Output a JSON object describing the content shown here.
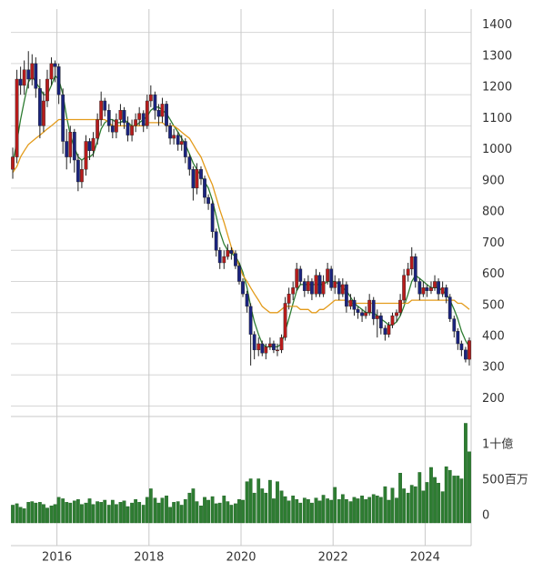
{
  "chart_data": {
    "type": "candlestick",
    "x": [
      2015.04,
      2015.13,
      2015.21,
      2015.29,
      2015.38,
      2015.46,
      2015.54,
      2015.63,
      2015.71,
      2015.79,
      2015.88,
      2015.96,
      2016.04,
      2016.13,
      2016.21,
      2016.29,
      2016.38,
      2016.46,
      2016.54,
      2016.63,
      2016.71,
      2016.79,
      2016.88,
      2016.96,
      2017.04,
      2017.13,
      2017.21,
      2017.29,
      2017.38,
      2017.46,
      2017.54,
      2017.63,
      2017.71,
      2017.79,
      2017.88,
      2017.96,
      2018.04,
      2018.13,
      2018.21,
      2018.29,
      2018.38,
      2018.46,
      2018.54,
      2018.63,
      2018.71,
      2018.79,
      2018.88,
      2018.96,
      2019.04,
      2019.13,
      2019.21,
      2019.29,
      2019.38,
      2019.46,
      2019.54,
      2019.63,
      2019.71,
      2019.79,
      2019.88,
      2019.96,
      2020.04,
      2020.13,
      2020.21,
      2020.29,
      2020.38,
      2020.46,
      2020.54,
      2020.63,
      2020.71,
      2020.79,
      2020.88,
      2020.96,
      2021.04,
      2021.13,
      2021.21,
      2021.29,
      2021.38,
      2021.46,
      2021.54,
      2021.63,
      2021.71,
      2021.79,
      2021.88,
      2021.96,
      2022.04,
      2022.13,
      2022.21,
      2022.29,
      2022.38,
      2022.46,
      2022.54,
      2022.63,
      2022.71,
      2022.79,
      2022.88,
      2022.96,
      2023.04,
      2023.13,
      2023.21,
      2023.29,
      2023.38,
      2023.46,
      2023.54,
      2023.63,
      2023.71,
      2023.79,
      2023.88,
      2023.96,
      2024.04,
      2024.13,
      2024.21,
      2024.29,
      2024.38,
      2024.46,
      2024.54,
      2024.63,
      2024.71,
      2024.79,
      2024.88,
      2024.96
    ],
    "xlim": [
      2015,
      2025
    ],
    "xticks": [
      2016,
      2018,
      2020,
      2022,
      2024
    ],
    "ylim": [
      175,
      1475
    ],
    "yticks": [
      200,
      300,
      400,
      500,
      600,
      700,
      800,
      900,
      1000,
      1100,
      1200,
      1300,
      1400
    ],
    "grid": true,
    "up_color": "#b71c1c",
    "down_color": "#1a237e",
    "candles": [
      [
        960,
        1030,
        930,
        1000
      ],
      [
        1000,
        1280,
        980,
        1250
      ],
      [
        1250,
        1290,
        1200,
        1230
      ],
      [
        1230,
        1310,
        1200,
        1280
      ],
      [
        1280,
        1340,
        1220,
        1250
      ],
      [
        1250,
        1330,
        1230,
        1300
      ],
      [
        1300,
        1320,
        1190,
        1220
      ],
      [
        1220,
        1250,
        1060,
        1100
      ],
      [
        1100,
        1210,
        1080,
        1180
      ],
      [
        1180,
        1280,
        1160,
        1250
      ],
      [
        1250,
        1320,
        1230,
        1300
      ],
      [
        1300,
        1310,
        1240,
        1290
      ],
      [
        1290,
        1300,
        1170,
        1200
      ],
      [
        1200,
        1220,
        1010,
        1050
      ],
      [
        1050,
        1090,
        960,
        1000
      ],
      [
        1000,
        1100,
        980,
        1080
      ],
      [
        1080,
        1090,
        950,
        990
      ],
      [
        990,
        1010,
        890,
        920
      ],
      [
        920,
        990,
        900,
        960
      ],
      [
        960,
        1070,
        940,
        1050
      ],
      [
        1050,
        1060,
        990,
        1020
      ],
      [
        1020,
        1080,
        1000,
        1060
      ],
      [
        1060,
        1140,
        1040,
        1120
      ],
      [
        1120,
        1210,
        1100,
        1180
      ],
      [
        1180,
        1190,
        1130,
        1150
      ],
      [
        1150,
        1170,
        1080,
        1100
      ],
      [
        1100,
        1120,
        1060,
        1080
      ],
      [
        1080,
        1140,
        1060,
        1120
      ],
      [
        1120,
        1170,
        1100,
        1150
      ],
      [
        1150,
        1160,
        1090,
        1110
      ],
      [
        1110,
        1130,
        1050,
        1070
      ],
      [
        1070,
        1120,
        1050,
        1100
      ],
      [
        1100,
        1140,
        1080,
        1120
      ],
      [
        1120,
        1160,
        1100,
        1140
      ],
      [
        1140,
        1150,
        1080,
        1100
      ],
      [
        1100,
        1200,
        1090,
        1180
      ],
      [
        1180,
        1230,
        1160,
        1200
      ],
      [
        1200,
        1210,
        1120,
        1150
      ],
      [
        1150,
        1170,
        1100,
        1130
      ],
      [
        1130,
        1190,
        1110,
        1170
      ],
      [
        1170,
        1180,
        1080,
        1100
      ],
      [
        1100,
        1110,
        1040,
        1060
      ],
      [
        1060,
        1090,
        1040,
        1070
      ],
      [
        1070,
        1080,
        1020,
        1040
      ],
      [
        1040,
        1070,
        1020,
        1050
      ],
      [
        1050,
        1060,
        980,
        1000
      ],
      [
        1000,
        1010,
        940,
        960
      ],
      [
        960,
        970,
        860,
        900
      ],
      [
        900,
        980,
        880,
        960
      ],
      [
        960,
        970,
        910,
        930
      ],
      [
        930,
        940,
        850,
        870
      ],
      [
        870,
        880,
        830,
        850
      ],
      [
        850,
        860,
        740,
        760
      ],
      [
        760,
        770,
        680,
        700
      ],
      [
        700,
        710,
        640,
        660
      ],
      [
        660,
        700,
        640,
        680
      ],
      [
        680,
        720,
        670,
        700
      ],
      [
        700,
        710,
        670,
        690
      ],
      [
        690,
        700,
        640,
        650
      ],
      [
        650,
        660,
        590,
        600
      ],
      [
        600,
        610,
        550,
        560
      ],
      [
        560,
        570,
        500,
        520
      ],
      [
        520,
        530,
        330,
        430
      ],
      [
        430,
        440,
        350,
        380
      ],
      [
        380,
        420,
        360,
        400
      ],
      [
        400,
        410,
        360,
        370
      ],
      [
        370,
        400,
        350,
        390
      ],
      [
        390,
        420,
        380,
        400
      ],
      [
        400,
        410,
        370,
        380
      ],
      [
        380,
        400,
        360,
        380
      ],
      [
        380,
        430,
        370,
        420
      ],
      [
        420,
        550,
        410,
        530
      ],
      [
        530,
        580,
        510,
        560
      ],
      [
        560,
        600,
        540,
        580
      ],
      [
        580,
        660,
        570,
        640
      ],
      [
        640,
        650,
        590,
        600
      ],
      [
        600,
        610,
        550,
        570
      ],
      [
        570,
        620,
        560,
        600
      ],
      [
        600,
        610,
        540,
        560
      ],
      [
        560,
        640,
        550,
        620
      ],
      [
        620,
        630,
        550,
        560
      ],
      [
        560,
        620,
        550,
        600
      ],
      [
        600,
        660,
        590,
        640
      ],
      [
        640,
        650,
        570,
        580
      ],
      [
        580,
        620,
        560,
        600
      ],
      [
        600,
        610,
        540,
        560
      ],
      [
        560,
        610,
        550,
        590
      ],
      [
        590,
        600,
        500,
        520
      ],
      [
        520,
        560,
        510,
        540
      ],
      [
        540,
        550,
        490,
        510
      ],
      [
        510,
        520,
        480,
        500
      ],
      [
        500,
        510,
        470,
        490
      ],
      [
        490,
        520,
        480,
        500
      ],
      [
        500,
        560,
        490,
        540
      ],
      [
        540,
        550,
        460,
        480
      ],
      [
        480,
        510,
        420,
        490
      ],
      [
        490,
        500,
        430,
        450
      ],
      [
        450,
        460,
        410,
        430
      ],
      [
        430,
        470,
        420,
        460
      ],
      [
        460,
        500,
        450,
        490
      ],
      [
        490,
        510,
        470,
        500
      ],
      [
        500,
        560,
        490,
        540
      ],
      [
        540,
        640,
        530,
        620
      ],
      [
        620,
        660,
        600,
        640
      ],
      [
        640,
        710,
        620,
        680
      ],
      [
        680,
        690,
        580,
        600
      ],
      [
        600,
        610,
        540,
        560
      ],
      [
        560,
        600,
        550,
        580
      ],
      [
        580,
        590,
        550,
        570
      ],
      [
        570,
        600,
        560,
        580
      ],
      [
        580,
        620,
        570,
        600
      ],
      [
        600,
        610,
        540,
        560
      ],
      [
        560,
        600,
        550,
        580
      ],
      [
        580,
        590,
        530,
        550
      ],
      [
        550,
        560,
        470,
        480
      ],
      [
        480,
        490,
        420,
        440
      ],
      [
        440,
        450,
        380,
        400
      ],
      [
        400,
        410,
        360,
        380
      ],
      [
        380,
        390,
        340,
        350
      ],
      [
        350,
        420,
        330,
        410
      ]
    ],
    "moving_averages": [
      {
        "color": "#2e7d32",
        "values": [
          980,
          1050,
          1120,
          1180,
          1240,
          1260,
          1240,
          1220,
          1200,
          1200,
          1230,
          1260,
          1250,
          1200,
          1130,
          1070,
          1030,
          1000,
          990,
          1000,
          1000,
          1010,
          1050,
          1090,
          1110,
          1120,
          1120,
          1110,
          1110,
          1120,
          1110,
          1100,
          1100,
          1110,
          1120,
          1130,
          1150,
          1160,
          1160,
          1150,
          1140,
          1120,
          1100,
          1080,
          1060,
          1040,
          1010,
          980,
          960,
          940,
          920,
          900,
          860,
          810,
          760,
          720,
          700,
          690,
          680,
          660,
          630,
          580,
          520,
          470,
          430,
          400,
          390,
          390,
          390,
          390,
          400,
          440,
          480,
          530,
          570,
          590,
          590,
          590,
          590,
          590,
          590,
          590,
          600,
          600,
          600,
          590,
          580,
          570,
          550,
          530,
          520,
          510,
          500,
          500,
          500,
          490,
          480,
          470,
          460,
          460,
          470,
          490,
          520,
          560,
          600,
          620,
          610,
          600,
          590,
          580,
          580,
          580,
          570,
          560,
          540,
          510,
          480,
          440,
          410,
          390
        ]
      },
      {
        "color": "#e39b1b",
        "values": [
          950,
          970,
          1000,
          1020,
          1040,
          1050,
          1060,
          1070,
          1080,
          1090,
          1100,
          1110,
          1120,
          1120,
          1120,
          1120,
          1120,
          1120,
          1120,
          1120,
          1120,
          1120,
          1120,
          1120,
          1120,
          1110,
          1100,
          1100,
          1100,
          1100,
          1100,
          1100,
          1100,
          1100,
          1100,
          1110,
          1110,
          1110,
          1110,
          1110,
          1100,
          1100,
          1100,
          1090,
          1080,
          1070,
          1060,
          1040,
          1020,
          1000,
          970,
          940,
          910,
          870,
          830,
          790,
          750,
          710,
          680,
          650,
          620,
          600,
          580,
          560,
          540,
          520,
          510,
          500,
          500,
          500,
          510,
          520,
          520,
          520,
          520,
          510,
          510,
          510,
          500,
          500,
          510,
          510,
          520,
          530,
          540,
          540,
          540,
          540,
          530,
          530,
          530,
          530,
          530,
          530,
          530,
          530,
          530,
          530,
          530,
          530,
          530,
          530,
          530,
          530,
          540,
          540,
          540,
          540,
          540,
          540,
          540,
          540,
          540,
          540,
          540,
          540,
          530,
          530,
          520,
          510
        ]
      }
    ],
    "volume": {
      "color": "#2e7d32",
      "ylim": [
        0,
        1470000000
      ],
      "yticks": [
        {
          "value": 1000000000,
          "label": "1十億"
        },
        {
          "value": 500000000,
          "label": "500百万"
        },
        0
      ],
      "values": [
        250000000.0,
        270000000.0,
        220000000.0,
        200000000.0,
        290000000.0,
        300000000.0,
        280000000.0,
        290000000.0,
        260000000.0,
        210000000.0,
        240000000.0,
        260000000.0,
        360000000.0,
        340000000.0,
        290000000.0,
        280000000.0,
        310000000.0,
        330000000.0,
        260000000.0,
        280000000.0,
        340000000.0,
        260000000.0,
        300000000.0,
        290000000.0,
        320000000.0,
        250000000.0,
        320000000.0,
        260000000.0,
        290000000.0,
        310000000.0,
        230000000.0,
        280000000.0,
        330000000.0,
        290000000.0,
        250000000.0,
        360000000.0,
        480000000.0,
        350000000.0,
        280000000.0,
        350000000.0,
        380000000.0,
        220000000.0,
        290000000.0,
        300000000.0,
        250000000.0,
        330000000.0,
        420000000.0,
        480000000.0,
        300000000.0,
        240000000.0,
        360000000.0,
        320000000.0,
        370000000.0,
        270000000.0,
        280000000.0,
        380000000.0,
        300000000.0,
        250000000.0,
        270000000.0,
        330000000.0,
        320000000.0,
        580000000.0,
        620000000.0,
        420000000.0,
        620000000.0,
        480000000.0,
        420000000.0,
        600000000.0,
        340000000.0,
        580000000.0,
        450000000.0,
        370000000.0,
        310000000.0,
        380000000.0,
        330000000.0,
        280000000.0,
        350000000.0,
        330000000.0,
        280000000.0,
        350000000.0,
        310000000.0,
        390000000.0,
        340000000.0,
        320000000.0,
        500000000.0,
        330000000.0,
        400000000.0,
        330000000.0,
        300000000.0,
        360000000.0,
        340000000.0,
        380000000.0,
        330000000.0,
        360000000.0,
        400000000.0,
        380000000.0,
        360000000.0,
        510000000.0,
        320000000.0,
        490000000.0,
        350000000.0,
        700000000.0,
        480000000.0,
        420000000.0,
        530000000.0,
        510000000.0,
        710000000.0,
        450000000.0,
        570000000.0,
        780000000.0,
        640000000.0,
        560000000.0,
        440000000.0,
        790000000.0,
        740000000.0,
        660000000.0,
        660000000.0,
        620000000.0,
        1400000000.0,
        1000000000.0
      ]
    }
  }
}
